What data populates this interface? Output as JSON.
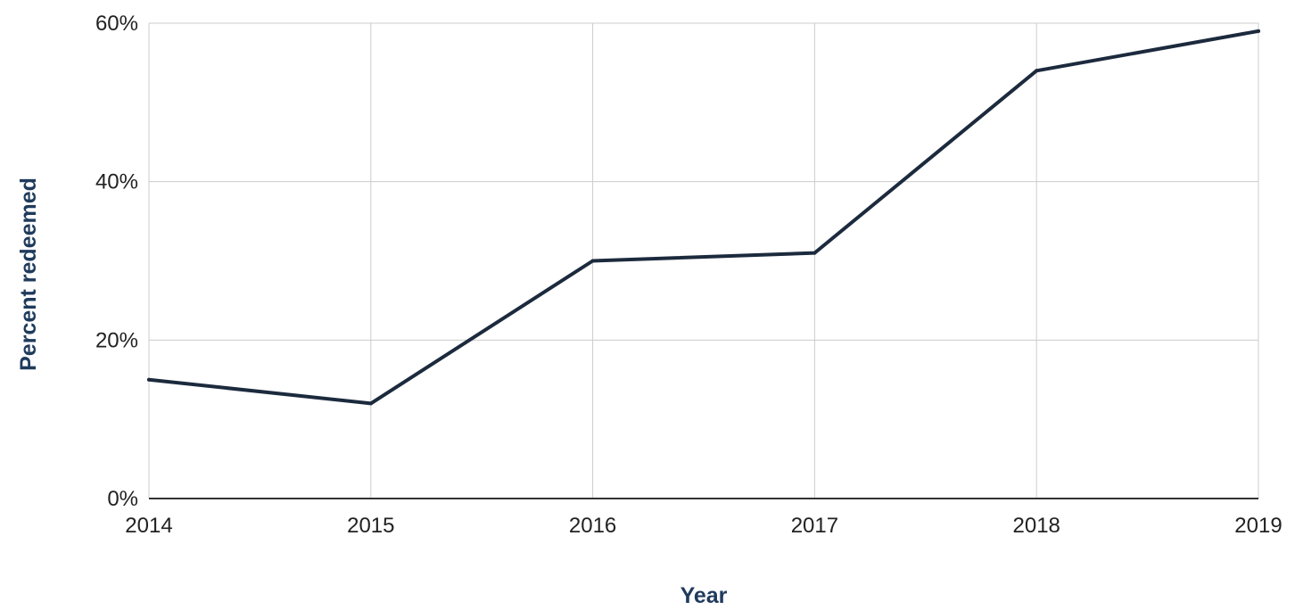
{
  "chart_data": {
    "type": "line",
    "title": "",
    "xlabel": "Year",
    "ylabel": "Percent redeemed",
    "x": [
      2014,
      2015,
      2016,
      2017,
      2018,
      2019
    ],
    "x_tick_labels": [
      "2014",
      "2015",
      "2016",
      "2017",
      "2018",
      "2019"
    ],
    "series": [
      {
        "values": [
          15,
          12,
          30,
          31,
          54,
          59
        ]
      }
    ],
    "xlim": [
      2014,
      2019
    ],
    "ylim": [
      0,
      60
    ],
    "y_ticks": [
      0,
      20,
      40,
      60
    ],
    "y_tick_labels": [
      "0%",
      "20%",
      "40%",
      "60%"
    ],
    "grid": true,
    "legend": "none"
  },
  "colors": {
    "line": "#1c2a3d",
    "axis_title": "#1f3b5c",
    "grid": "#cccccc",
    "axis": "#333333"
  }
}
